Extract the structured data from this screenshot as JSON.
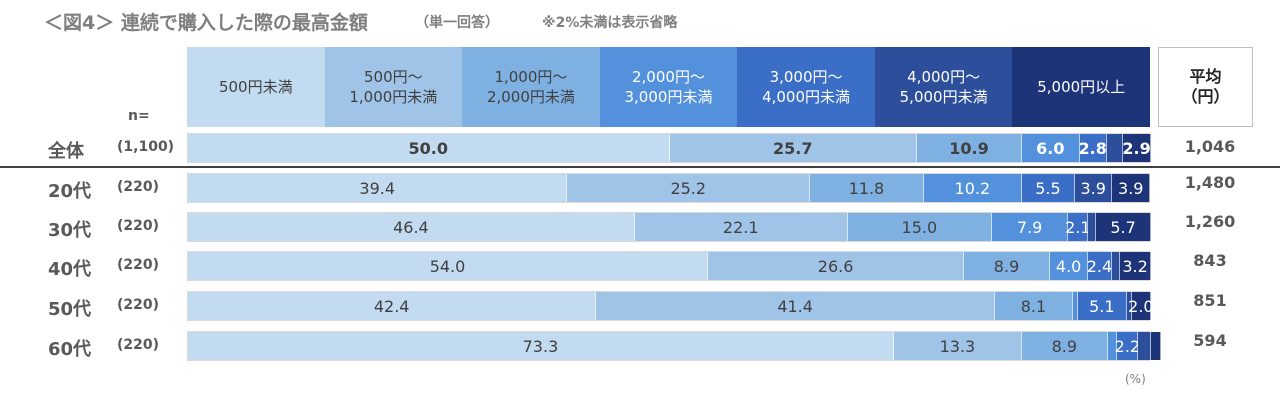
{
  "chart_data": {
    "type": "stacked-bar-100",
    "title": "＜図4＞ 連続で購入した際の最高金額",
    "subtitle": "（単一回答）",
    "note": "※2%未満は表示省略",
    "n_header": "n=",
    "average_header": "平均\n（円）",
    "unit": "(%)",
    "categories": [
      "全体",
      "20代",
      "30代",
      "40代",
      "50代",
      "60代"
    ],
    "n_labels": [
      "(1,100)",
      "(220)",
      "(220)",
      "(220)",
      "(220)",
      "(220)"
    ],
    "average_labels": [
      "1,046",
      "1,480",
      "1,260",
      "843",
      "851",
      "594"
    ],
    "xlim": [
      0,
      100
    ],
    "series": [
      {
        "name": "500円未満",
        "color": "#c3dbf1",
        "label_color": "#404040",
        "values": [
          50.0,
          39.4,
          46.4,
          54.0,
          42.4,
          73.3
        ],
        "value_labels": [
          "50.0",
          "39.4",
          "46.4",
          "54.0",
          "42.4",
          "73.3"
        ]
      },
      {
        "name": "500円～\n1,000円未満",
        "color": "#9fc4e8",
        "label_color": "#404040",
        "values": [
          25.7,
          25.2,
          22.1,
          26.6,
          41.4,
          13.3
        ],
        "value_labels": [
          "25.7",
          "25.2",
          "22.1",
          "26.6",
          "41.4",
          "13.3"
        ]
      },
      {
        "name": "1,000円～\n2,000円未満",
        "color": "#7fb0e2",
        "label_color": "#404040",
        "values": [
          10.9,
          11.8,
          15.0,
          8.9,
          8.1,
          8.9
        ],
        "value_labels": [
          "10.9",
          "11.8",
          "15.0",
          "8.9",
          "8.1",
          "8.9"
        ]
      },
      {
        "name": "2,000円～\n3,000円未満",
        "color": "#5391dc",
        "label_color": "#ffffff",
        "values": [
          6.0,
          10.2,
          7.9,
          4.0,
          0.5,
          1.0
        ],
        "value_labels": [
          "6.0",
          "10.2",
          "7.9",
          "4.0",
          null,
          null
        ]
      },
      {
        "name": "3,000円～\n4,000円未満",
        "color": "#3b6ec6",
        "label_color": "#ffffff",
        "values": [
          2.8,
          5.5,
          2.1,
          2.4,
          5.1,
          2.2
        ],
        "value_labels": [
          "2.8",
          "5.5",
          "2.1",
          "2.4",
          "5.1",
          "2.2"
        ]
      },
      {
        "name": "4,000円～\n5,000円未満",
        "color": "#2d4f9b",
        "label_color": "#ffffff",
        "values": [
          1.7,
          3.9,
          0.8,
          0.9,
          0.5,
          1.3
        ],
        "value_labels": [
          null,
          "3.9",
          null,
          null,
          null,
          null
        ]
      },
      {
        "name": "5,000円以上",
        "color": "#1e3478",
        "label_color": "#ffffff",
        "values": [
          2.9,
          3.9,
          5.7,
          3.2,
          2.0,
          1.0
        ],
        "value_labels": [
          "2.9",
          "3.9",
          "5.7",
          "3.2",
          "2.0",
          null
        ]
      }
    ]
  }
}
